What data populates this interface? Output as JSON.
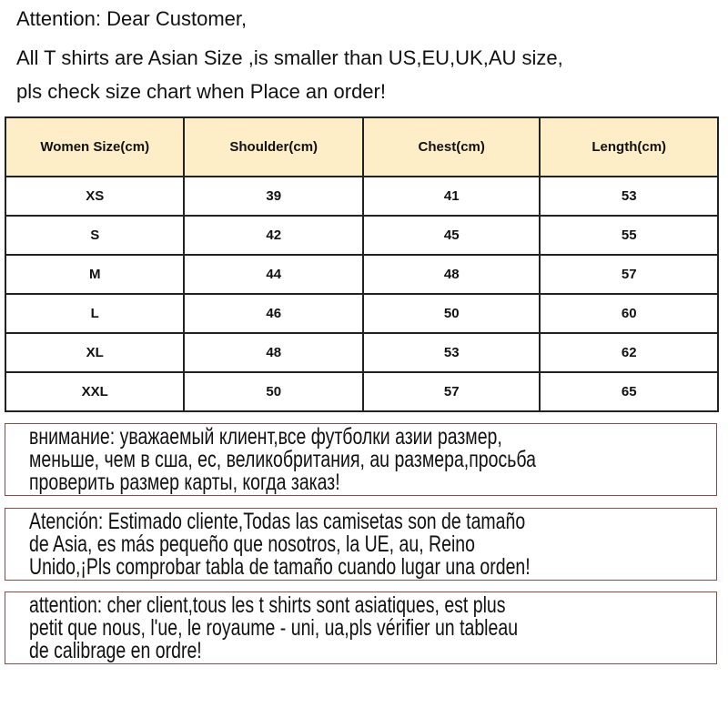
{
  "intro": [
    "Attention: Dear Customer,",
    "All T shirts are  Asian Size ,is smaller than US,EU,UK,AU size,",
    "pls check size chart when Place an order!"
  ],
  "table": {
    "headers": [
      "Women Size(cm)",
      "Shoulder(cm)",
      "Chest(cm)",
      "Length(cm)"
    ],
    "rows": [
      [
        "XS",
        "39",
        "41",
        "53"
      ],
      [
        "S",
        "42",
        "45",
        "55"
      ],
      [
        "M",
        "44",
        "48",
        "57"
      ],
      [
        "L",
        "46",
        "50",
        "60"
      ],
      [
        "XL",
        "48",
        "53",
        "62"
      ],
      [
        "XXL",
        "50",
        "57",
        "65"
      ]
    ],
    "header_color": "#fdeec7"
  },
  "notices": [
    {
      "lang": "ru",
      "lines": [
        "внимание: уважаемый клиент,все футболки азии размер,",
        "меньше, чем в сша, ес, великобритания, au размера,просьба",
        "проверить размер карты, когда заказ!"
      ]
    },
    {
      "lang": "es",
      "lines": [
        "Atención: Estimado cliente,Todas las camisetas son de tamaño",
        "de Asia, es más pequeño que nosotros, la UE, au, Reino",
        "Unido,¡Pls comprobar tabla de tamaño cuando lugar una orden!"
      ]
    },
    {
      "lang": "fr",
      "lines": [
        "attention: cher client,tous les t shirts sont asiatiques, est plus",
        "petit que nous, l'ue, le royaume - uni, ua,pls vérifier un tableau",
        "de calibrage en ordre!"
      ]
    }
  ],
  "border_color": "#8a4b48"
}
